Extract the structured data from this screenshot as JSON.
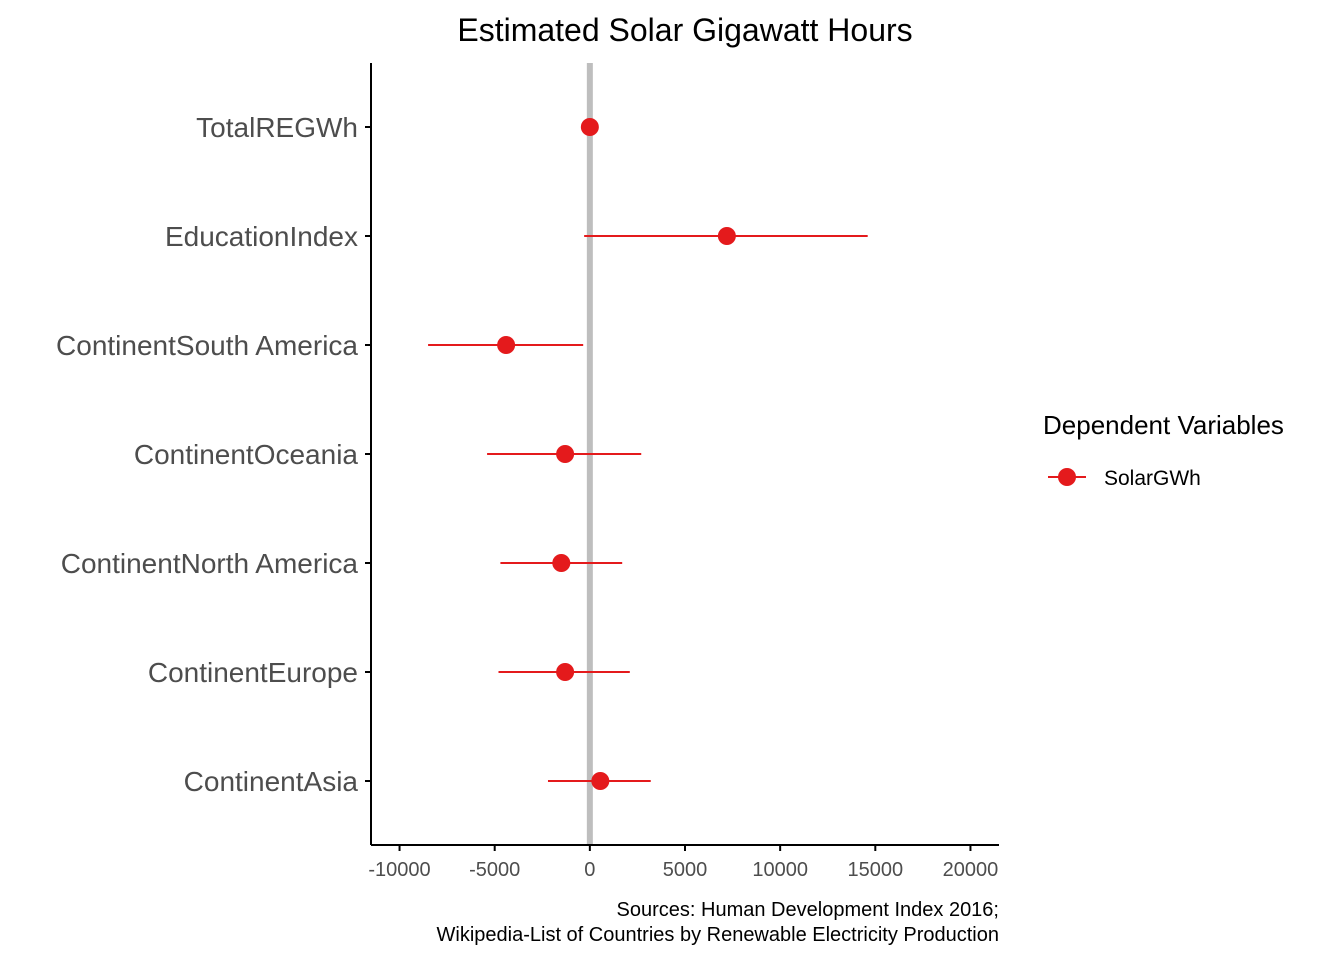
{
  "chart_data": {
    "type": "scatter",
    "title": "Estimated Solar Gigawatt Hours",
    "xlabel": "",
    "ylabel": "",
    "categories": [
      "TotalREGWh",
      "EducationIndex",
      "ContinentSouth America",
      "ContinentOceania",
      "ContinentNorth America",
      "ContinentEurope",
      "ContinentAsia"
    ],
    "series": [
      {
        "name": "SolarGWh",
        "values": [
          0,
          7200,
          -4400,
          -1300,
          -1500,
          -1300,
          550
        ],
        "lower": [
          0,
          -300,
          -8500,
          -5400,
          -4700,
          -4800,
          -2200
        ],
        "upper": [
          0,
          14600,
          -350,
          2700,
          1700,
          2100,
          3200
        ]
      }
    ],
    "xlim": [
      -11500,
      21500
    ],
    "xticks": [
      -10000,
      -5000,
      0,
      5000,
      10000,
      15000,
      20000
    ],
    "xtick_labels": [
      "-10000",
      "-5000",
      "0",
      "5000",
      "10000",
      "15000",
      "20000"
    ],
    "reference_line": 0,
    "grid": false,
    "legend": {
      "title": "Dependent Variables",
      "position": "right",
      "entries": [
        "SolarGWh"
      ]
    },
    "caption_lines": [
      "Sources: Human Development Index 2016;",
      "Wikipedia-List of Countries by Renewable Electricity Production"
    ],
    "colors": {
      "series": "#e41a1c",
      "reference_line": "#bebebe",
      "axis": "#000000",
      "tick_text": "#4d4d4d"
    }
  }
}
